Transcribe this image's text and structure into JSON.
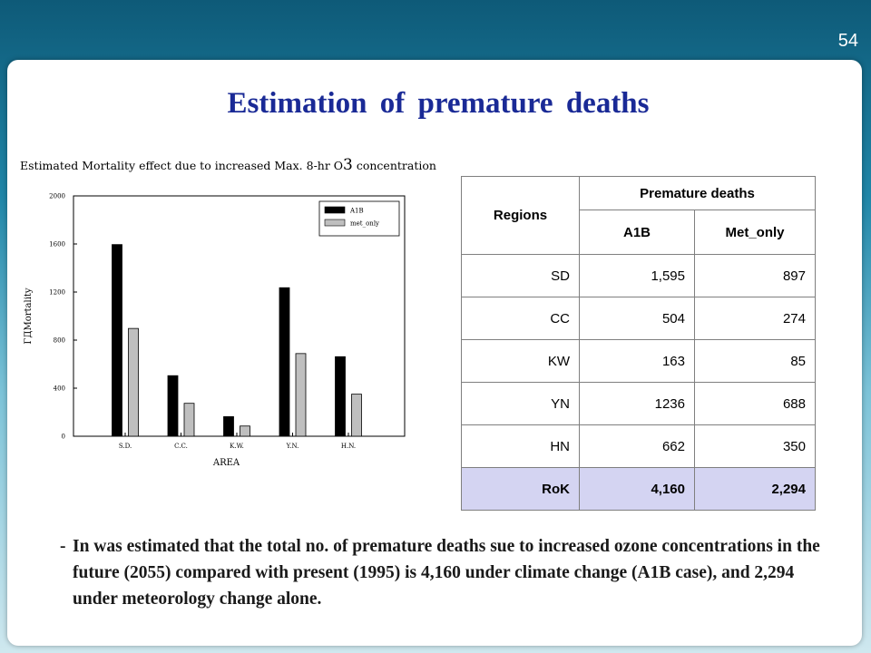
{
  "slide": {
    "number": "54",
    "title": "Estimation of premature deaths"
  },
  "chart_data": {
    "type": "bar",
    "title": "Estimated Mortality effect due to increased Max. 8-hr O3 concentration",
    "xlabel": "AREA",
    "ylabel": "ΓДMortality",
    "categories": [
      "S.D.",
      "C.C.",
      "K.W.",
      "Y.N.",
      "H.N."
    ],
    "series": [
      {
        "name": "A1B",
        "values": [
          1595,
          504,
          163,
          1236,
          662
        ],
        "color": "#000000"
      },
      {
        "name": "met_only",
        "values": [
          897,
          274,
          85,
          688,
          350
        ],
        "color": "#bfbfbf"
      }
    ],
    "ylim": [
      0,
      2000
    ],
    "yticks": [
      0,
      400,
      800,
      1200,
      1600,
      2000
    ],
    "legend": "top-right",
    "grid": false
  },
  "table": {
    "header_region": "Regions",
    "header_group": "Premature deaths",
    "header_a1b": "A1B",
    "header_met": "Met_only",
    "rows": [
      {
        "region": "SD",
        "a1b": "1,595",
        "met": "897"
      },
      {
        "region": "CC",
        "a1b": "504",
        "met": "274"
      },
      {
        "region": "KW",
        "a1b": "163",
        "met": "85"
      },
      {
        "region": "YN",
        "a1b": "1236",
        "met": "688"
      },
      {
        "region": "HN",
        "a1b": "662",
        "met": "350"
      }
    ],
    "total": {
      "region": "RoK",
      "a1b": "4,160",
      "met": "2,294"
    }
  },
  "note": {
    "dash": "-",
    "text": "In was estimated that the total no. of premature deaths sue to increased ozone concentrations in the future (2055) compared with present (1995) is 4,160 under climate change (A1B case), and 2,294 under meteorology change alone."
  }
}
